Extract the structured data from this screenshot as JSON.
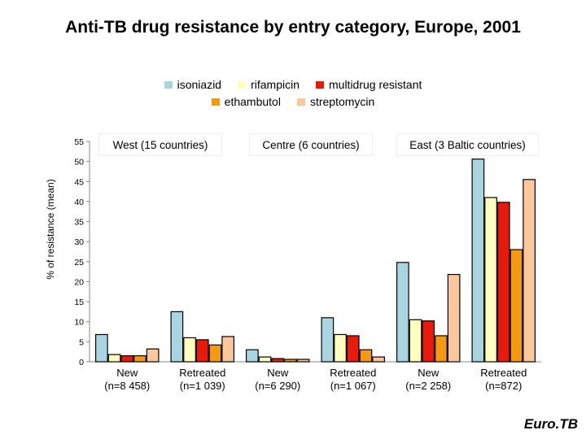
{
  "chart_data": {
    "type": "bar",
    "title": "Anti-TB drug resistance by entry category, Europe, 2001",
    "ylabel": "% of resistance (mean)",
    "ylim": [
      0,
      55
    ],
    "yticks": [
      0,
      5,
      10,
      15,
      20,
      25,
      30,
      35,
      40,
      45,
      50,
      55
    ],
    "legend": "top-center",
    "regions": [
      {
        "label": "West (15 countries)"
      },
      {
        "label": "Centre (6 countries)"
      },
      {
        "label": "East (3 Baltic countries)"
      }
    ],
    "categories": [
      {
        "line1": "New",
        "line2": "(n=8 458)"
      },
      {
        "line1": "Retreated",
        "line2": "(n=1 039)"
      },
      {
        "line1": "New",
        "line2": "(n=6 290)"
      },
      {
        "line1": "Retreated",
        "line2": "(n=1 067)"
      },
      {
        "line1": "New",
        "line2": "(n=2 258)"
      },
      {
        "line1": "Retreated",
        "line2": "(n=872)"
      }
    ],
    "series": [
      {
        "name": "isoniazid",
        "color": "#a9d5e0",
        "values": [
          6.8,
          12.5,
          3.0,
          11.0,
          24.8,
          50.6
        ]
      },
      {
        "name": "rifampicin",
        "color": "#ffffc0",
        "values": [
          1.8,
          6.0,
          1.2,
          6.8,
          10.5,
          41.0
        ]
      },
      {
        "name": "multidrug resistant",
        "color": "#e81a0c",
        "values": [
          1.5,
          5.5,
          0.8,
          6.5,
          10.2,
          39.8
        ]
      },
      {
        "name": "ethambutol",
        "color": "#f39a10",
        "values": [
          1.5,
          4.2,
          0.6,
          3.0,
          6.5,
          28.0
        ]
      },
      {
        "name": "streptomycin",
        "color": "#fcc79a",
        "values": [
          3.2,
          6.3,
          0.6,
          1.2,
          21.8,
          45.5
        ]
      }
    ]
  },
  "legend_rows": {
    "row1": [
      "isoniazid",
      "rifampicin",
      "multidrug resistant"
    ],
    "row2": [
      "ethambutol",
      "streptomycin"
    ]
  },
  "brand": "Euro.TB"
}
